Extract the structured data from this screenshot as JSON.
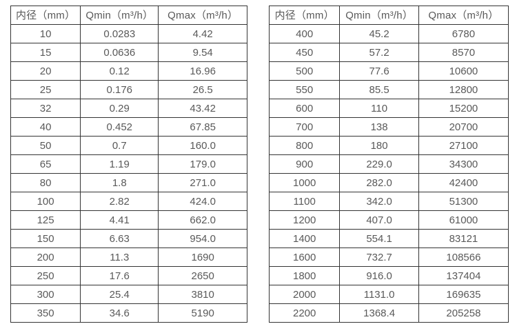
{
  "colors": {
    "background": "#ffffff",
    "border": "#333333",
    "text": "#595959"
  },
  "left_table": {
    "headers": [
      "内径（mm）",
      "Qmin（m³/h）",
      "Qmax（m³/h）"
    ],
    "rows": [
      [
        "10",
        "0.0283",
        "4.42"
      ],
      [
        "15",
        "0.0636",
        "9.54"
      ],
      [
        "20",
        "0.12",
        "16.96"
      ],
      [
        "25",
        "0.176",
        "26.5"
      ],
      [
        "32",
        "0.29",
        "43.42"
      ],
      [
        "40",
        "0.452",
        "67.85"
      ],
      [
        "50",
        "0.7",
        "160.0"
      ],
      [
        "65",
        "1.19",
        "179.0"
      ],
      [
        "80",
        "1.8",
        "271.0"
      ],
      [
        "100",
        "2.82",
        "424.0"
      ],
      [
        "125",
        "4.41",
        "662.0"
      ],
      [
        "150",
        "6.63",
        "954.0"
      ],
      [
        "200",
        "11.3",
        "1690"
      ],
      [
        "250",
        "17.6",
        "2650"
      ],
      [
        "300",
        "25.4",
        "3810"
      ],
      [
        "350",
        "34.6",
        "5190"
      ]
    ]
  },
  "right_table": {
    "headers": [
      "内径（mm）",
      "Qmin（m³/h）",
      "Qmax（m³/h）"
    ],
    "rows": [
      [
        "400",
        "45.2",
        "6780"
      ],
      [
        "450",
        "57.2",
        "8570"
      ],
      [
        "500",
        "77.6",
        "10600"
      ],
      [
        "550",
        "85.5",
        "12800"
      ],
      [
        "600",
        "110",
        "15200"
      ],
      [
        "700",
        "138",
        "20700"
      ],
      [
        "800",
        "180",
        "27100"
      ],
      [
        "900",
        "229.0",
        "34300"
      ],
      [
        "1000",
        "282.0",
        "42400"
      ],
      [
        "1100",
        "342.0",
        "51300"
      ],
      [
        "1200",
        "407.0",
        "61000"
      ],
      [
        "1400",
        "554.1",
        "83121"
      ],
      [
        "1600",
        "732.7",
        "108566"
      ],
      [
        "1800",
        "916.0",
        "137404"
      ],
      [
        "2000",
        "1131.0",
        "169635"
      ],
      [
        "2200",
        "1368.4",
        "205258"
      ]
    ]
  },
  "chart_data": {
    "type": "table",
    "title": "",
    "columns": [
      "内径（mm）",
      "Qmin（m³/h）",
      "Qmax（m³/h）"
    ],
    "inner_diameter_mm": [
      10,
      15,
      20,
      25,
      32,
      40,
      50,
      65,
      80,
      100,
      125,
      150,
      200,
      250,
      300,
      350,
      400,
      450,
      500,
      550,
      600,
      700,
      800,
      900,
      1000,
      1100,
      1200,
      1400,
      1600,
      1800,
      2000,
      2200
    ],
    "qmin_m3_per_h": [
      0.0283,
      0.0636,
      0.12,
      0.176,
      0.29,
      0.452,
      0.7,
      1.19,
      1.8,
      2.82,
      4.41,
      6.63,
      11.3,
      17.6,
      25.4,
      34.6,
      45.2,
      57.2,
      77.6,
      85.5,
      110,
      138,
      180,
      229.0,
      282.0,
      342.0,
      407.0,
      554.1,
      732.7,
      916.0,
      1131.0,
      1368.4
    ],
    "qmax_m3_per_h": [
      4.42,
      9.54,
      16.96,
      26.5,
      43.42,
      67.85,
      160.0,
      179.0,
      271.0,
      424.0,
      662.0,
      954.0,
      1690,
      2650,
      3810,
      5190,
      6780,
      8570,
      10600,
      12800,
      15200,
      20700,
      27100,
      34300,
      42400,
      51300,
      61000,
      83121,
      108566,
      137404,
      169635,
      205258
    ]
  }
}
